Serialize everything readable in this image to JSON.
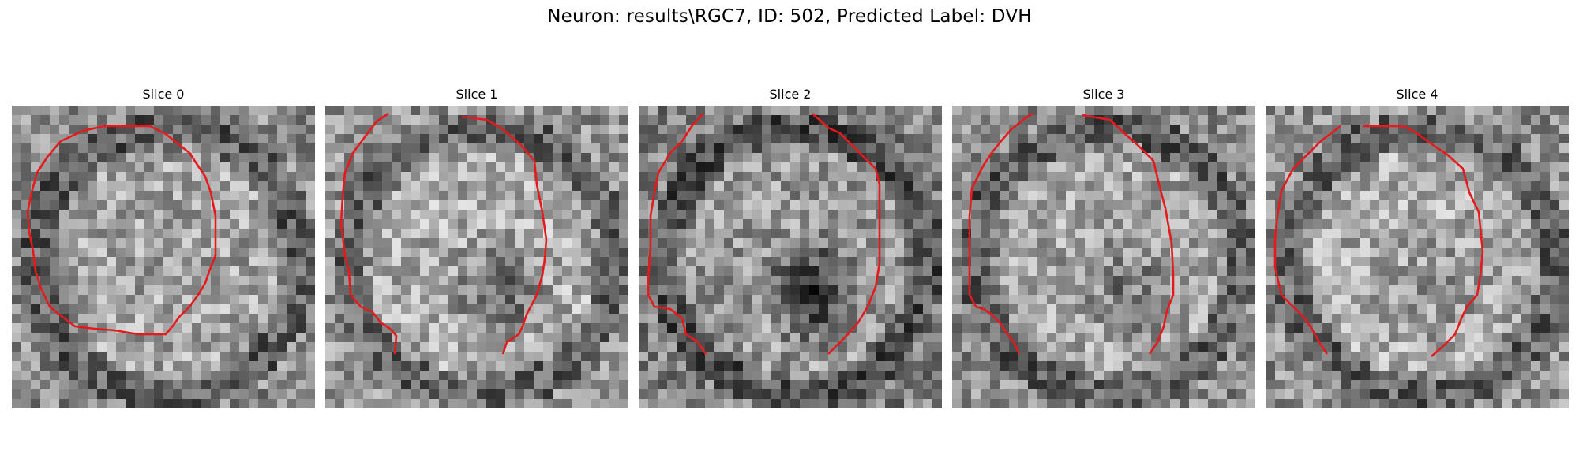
{
  "figure": {
    "title": "Neuron: results\\RGC7, ID: 502, Predicted Label: DVH"
  },
  "panels": [
    {
      "label": "Slice 0",
      "seed": 11,
      "base_gray": 0.55,
      "dark_center": 0.0,
      "outline_color": "#e41a1c"
    },
    {
      "label": "Slice 1",
      "seed": 23,
      "base_gray": 0.58,
      "dark_center": 0.35,
      "outline_color": "#e41a1c"
    },
    {
      "label": "Slice 2",
      "seed": 37,
      "base_gray": 0.5,
      "dark_center": 0.45,
      "outline_color": "#e41a1c"
    },
    {
      "label": "Slice 3",
      "seed": 41,
      "base_gray": 0.55,
      "dark_center": 0.2,
      "outline_color": "#e41a1c"
    },
    {
      "label": "Slice 4",
      "seed": 53,
      "base_gray": 0.57,
      "dark_center": 0.1,
      "outline_color": "#e41a1c"
    }
  ],
  "colors": {
    "outline": "#e41a1c",
    "background": "#ffffff"
  }
}
